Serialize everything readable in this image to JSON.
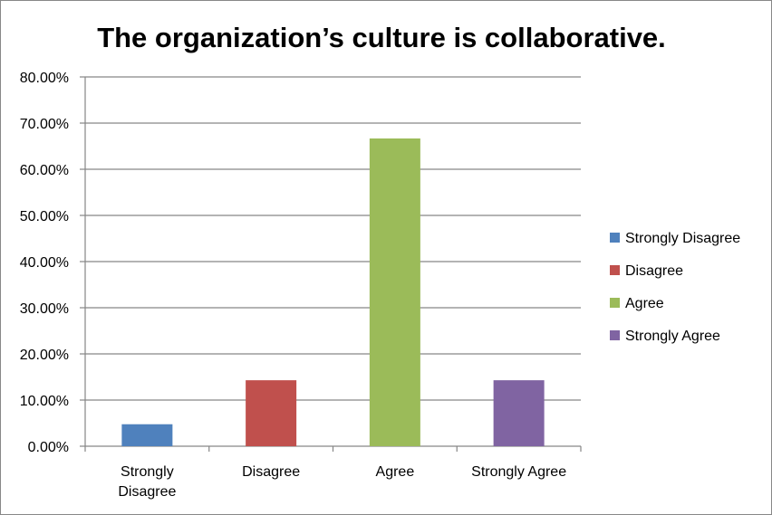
{
  "chart_data": {
    "type": "bar",
    "title": "The organization’s culture is collaborative.",
    "categories": [
      "Strongly Disagree",
      "Disagree",
      "Agree",
      "Strongly Agree"
    ],
    "category_label_lines": [
      [
        "Strongly",
        "Disagree"
      ],
      [
        "Disagree"
      ],
      [
        "Agree"
      ],
      [
        "Strongly Agree"
      ]
    ],
    "values": [
      4.76,
      14.29,
      66.67,
      14.29
    ],
    "value_format": "percent_2dp",
    "ylim": [
      0,
      80
    ],
    "y_ticks": [
      0,
      10,
      20,
      30,
      40,
      50,
      60,
      70,
      80
    ],
    "y_tick_labels": [
      "0.00%",
      "10.00%",
      "20.00%",
      "30.00%",
      "40.00%",
      "50.00%",
      "60.00%",
      "70.00%",
      "80.00%"
    ],
    "grid": true,
    "legend": {
      "placement": "right",
      "entries": [
        "Strongly Disagree",
        "Disagree",
        "Agree",
        "Strongly Agree"
      ]
    },
    "colors": [
      "#4F81BD",
      "#C0504D",
      "#9BBB59",
      "#8064A2"
    ],
    "xlabel": "",
    "ylabel": ""
  }
}
